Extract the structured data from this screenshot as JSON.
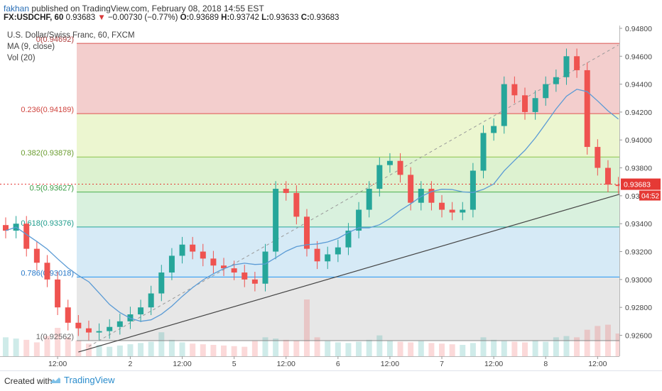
{
  "header": {
    "author": "fakhan",
    "published_text": " published on TradingView.com, February 08, 2018 14:55 EST",
    "symbol_interval": "FX:USDCHF, 60",
    "last": "0.93683",
    "arrow": "▼",
    "change": "−0.00730 (−0.77%)",
    "o_label": "O:",
    "o": "0.93689",
    "h_label": "H:",
    "h": "0.93742",
    "l_label": "L:",
    "l": "0.93633",
    "c_label": "C:",
    "c": "0.93683"
  },
  "footer": {
    "created_with": "Created with",
    "brand": "TradingView"
  },
  "colors": {
    "up": "#26a69a",
    "down": "#ef5350",
    "ma": "#5b9bd5",
    "trend": "#444444",
    "fib_top": "#f1c6c4",
    "fib_green": "#d7f0c8",
    "fib_blue": "#cfe6f5",
    "fib_gray": "#e3e3e3"
  },
  "chart_data": {
    "type": "candlestick",
    "title": "U.S. Dollar/Swiss Franc, 60, FXCM",
    "indicators": [
      "MA (9, close)",
      "Vol (20)"
    ],
    "ylim": [
      0.9245,
      0.9482
    ],
    "y_ticks": [
      "0.94800",
      "0.94600",
      "0.94400",
      "0.94200",
      "0.94000",
      "0.93800",
      "0.93600",
      "0.93400",
      "0.93200",
      "0.93000",
      "0.92800",
      "0.92600"
    ],
    "x_ticks": [
      {
        "label": "12:00",
        "index": 5
      },
      {
        "label": "2",
        "index": 12
      },
      {
        "label": "12:00",
        "index": 17
      },
      {
        "label": "5",
        "index": 22
      },
      {
        "label": "12:00",
        "index": 27
      },
      {
        "label": "6",
        "index": 32
      },
      {
        "label": "12:00",
        "index": 37
      },
      {
        "label": "7",
        "index": 42
      },
      {
        "label": "12:00",
        "index": 47
      },
      {
        "label": "8",
        "index": 52
      },
      {
        "label": "12:00",
        "index": 57
      }
    ],
    "last_price": "0.93683",
    "countdown": "04:52",
    "fib_levels": [
      {
        "label": "0(0.94692)",
        "value": 0.94692
      },
      {
        "label": "0.236(0.94189)",
        "value": 0.94189
      },
      {
        "label": "0.382(0.93878)",
        "value": 0.93878
      },
      {
        "label": "0.5(0.93627)",
        "value": 0.93627
      },
      {
        "label": "0.618(0.93376)",
        "value": 0.93376
      },
      {
        "label": "0.786(0.93018)",
        "value": 0.93018
      },
      {
        "label": "1(0.92562)",
        "value": 0.92562
      }
    ],
    "trendline": {
      "from": [
        7,
        0.9248
      ],
      "to": [
        60,
        0.9363
      ]
    },
    "dashed_line": {
      "from": [
        8,
        0.9252
      ],
      "to": [
        59,
        0.9468
      ]
    },
    "closes": [
      0.9335,
      0.934,
      0.9322,
      0.9312,
      0.93,
      0.928,
      0.9269,
      0.9265,
      0.9262,
      0.9263,
      0.9266,
      0.927,
      0.9275,
      0.928,
      0.929,
      0.9305,
      0.9317,
      0.9325,
      0.932,
      0.9315,
      0.931,
      0.9308,
      0.9305,
      0.93,
      0.9297,
      0.932,
      0.9365,
      0.9362,
      0.9345,
      0.9322,
      0.9313,
      0.9318,
      0.9323,
      0.9335,
      0.935,
      0.9365,
      0.9382,
      0.9385,
      0.9375,
      0.9355,
      0.9365,
      0.9355,
      0.935,
      0.9348,
      0.935,
      0.9378,
      0.9405,
      0.941,
      0.944,
      0.9432,
      0.942,
      0.943,
      0.944,
      0.9445,
      0.946,
      0.945,
      0.9395,
      0.938,
      0.9368,
      0.9367
    ],
    "volumes": [
      300,
      280,
      260,
      220,
      320,
      450,
      300,
      250,
      200,
      180,
      150,
      170,
      190,
      210,
      230,
      380,
      260,
      220,
      200,
      190,
      180,
      170,
      160,
      150,
      240,
      300,
      280,
      260,
      250,
      900,
      300,
      240,
      220,
      210,
      230,
      260,
      330,
      250,
      230,
      220,
      240,
      210,
      200,
      190,
      180,
      210,
      300,
      260,
      240,
      230,
      220,
      250,
      230,
      300,
      320,
      300,
      420,
      480,
      500,
      360
    ]
  }
}
